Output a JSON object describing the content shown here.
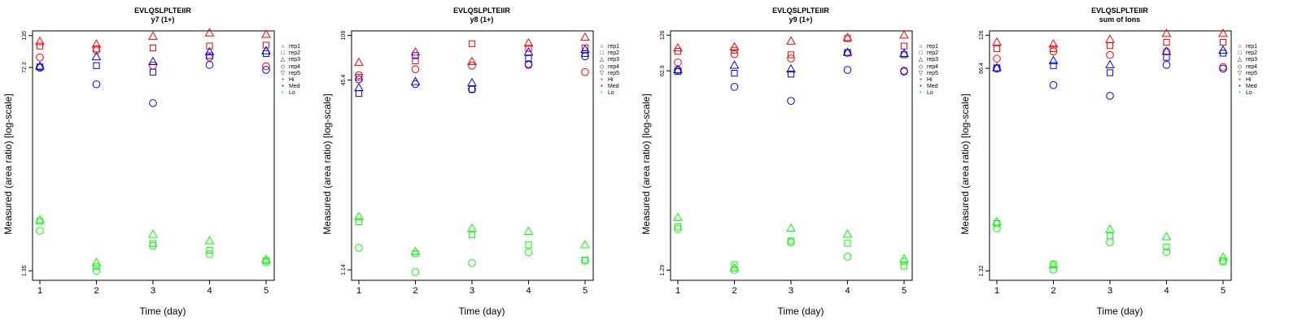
{
  "axis_labels": {
    "ylabel": "Measured (area ratio) [log-scale]",
    "xlabel": "Time (day)"
  },
  "legend": [
    {
      "label": "rep1",
      "shape": "circle",
      "color": "#000000"
    },
    {
      "label": "rep2",
      "shape": "square",
      "color": "#000000"
    },
    {
      "label": "rep3",
      "shape": "triangle-up",
      "color": "#000000"
    },
    {
      "label": "rep4",
      "shape": "diamond",
      "color": "#000000"
    },
    {
      "label": "rep5",
      "shape": "triangle-down",
      "color": "#000000"
    },
    {
      "label": "Hi",
      "shape": "dot",
      "color": "#ff0000"
    },
    {
      "label": "Med",
      "shape": "dot",
      "color": "#0000ff"
    },
    {
      "label": "Lo",
      "shape": "dot",
      "color": "#00ff00"
    }
  ],
  "colors": {
    "Hi": "#ff0000",
    "Med": "#0000ff",
    "Lo": "#00ff00"
  },
  "chart_data": [
    {
      "type": "scatter",
      "title": "EVLQSLPLTEIIR",
      "subtitle": "y7 (1+)",
      "xlabel": "Time (day)",
      "ylabel": "Measured (area ratio) [log-scale]",
      "x_ticks": [
        "1",
        "2",
        "3",
        "4",
        "5"
      ],
      "y_scale": "log",
      "y_ticks": [
        1.35,
        72.3,
        135
      ],
      "y_tick_labels": [
        "1.35",
        "72.3",
        "135"
      ],
      "ylim": [
        1.12,
        148
      ],
      "series": [
        {
          "name": "Hi rep1",
          "group": "Hi",
          "shape": "circle",
          "x": [
            1,
            2,
            3,
            4,
            5
          ],
          "y": [
            88,
            101,
            75,
            88,
            74
          ]
        },
        {
          "name": "Hi rep2",
          "group": "Hi",
          "shape": "square",
          "x": [
            1,
            2,
            3,
            4,
            5
          ],
          "y": [
            110,
            104,
            106,
            110,
            112
          ]
        },
        {
          "name": "Hi rep3",
          "group": "Hi",
          "shape": "triangle-up",
          "x": [
            1,
            2,
            3,
            4,
            5
          ],
          "y": [
            120,
            114,
            133,
            142,
            138
          ]
        },
        {
          "name": "Med rep1",
          "group": "Med",
          "shape": "circle",
          "x": [
            1,
            2,
            3,
            4,
            5
          ],
          "y": [
            72,
            52,
            36,
            76,
            69
          ]
        },
        {
          "name": "Med rep2",
          "group": "Med",
          "shape": "square",
          "x": [
            1,
            2,
            3,
            4,
            5
          ],
          "y": [
            73,
            75,
            66,
            91,
            95
          ]
        },
        {
          "name": "Med rep3",
          "group": "Med",
          "shape": "triangle-up",
          "x": [
            1,
            2,
            3,
            4,
            5
          ],
          "y": [
            74,
            89,
            81,
            98,
            100
          ]
        },
        {
          "name": "Lo rep1",
          "group": "Lo",
          "shape": "circle",
          "x": [
            1,
            2,
            3,
            4,
            5
          ],
          "y": [
            2.95,
            1.35,
            2.2,
            1.87,
            1.6
          ]
        },
        {
          "name": "Lo rep2",
          "group": "Lo",
          "shape": "square",
          "x": [
            1,
            2,
            3,
            4,
            5
          ],
          "y": [
            3.55,
            1.47,
            2.3,
            2.02,
            1.65
          ]
        },
        {
          "name": "Lo rep3",
          "group": "Lo",
          "shape": "triangle-up",
          "x": [
            1,
            2,
            3,
            4,
            5
          ],
          "y": [
            3.65,
            1.58,
            2.75,
            2.42,
            1.68
          ]
        }
      ]
    },
    {
      "type": "scatter",
      "title": "EVLQSLPLTEIIR",
      "subtitle": "y8 (1+)",
      "xlabel": "Time (day)",
      "ylabel": "Measured (area ratio) [log-scale]",
      "x_ticks": [
        "1",
        "2",
        "3",
        "4",
        "5"
      ],
      "y_scale": "log",
      "y_ticks": [
        1.14,
        45.4,
        108
      ],
      "y_tick_labels": [
        "1.14",
        "45.4",
        "108"
      ],
      "ylim": [
        0.93,
        118
      ],
      "series": [
        {
          "name": "Hi rep1",
          "group": "Hi",
          "shape": "circle",
          "x": [
            1,
            2,
            3,
            4,
            5
          ],
          "y": [
            50,
            56,
            60,
            62,
            53
          ]
        },
        {
          "name": "Hi rep2",
          "group": "Hi",
          "shape": "square",
          "x": [
            1,
            2,
            3,
            4,
            5
          ],
          "y": [
            48,
            66,
            92,
            84,
            85
          ]
        },
        {
          "name": "Hi rep3",
          "group": "Hi",
          "shape": "triangle-up",
          "x": [
            1,
            2,
            3,
            4,
            5
          ],
          "y": [
            64,
            78,
            65,
            93,
            104
          ]
        },
        {
          "name": "Med rep1",
          "group": "Med",
          "shape": "circle",
          "x": [
            1,
            2,
            3,
            4,
            5
          ],
          "y": [
            46,
            42,
            38,
            61,
            72
          ]
        },
        {
          "name": "Med rep2",
          "group": "Med",
          "shape": "square",
          "x": [
            1,
            2,
            3,
            4,
            5
          ],
          "y": [
            35,
            73,
            38,
            69,
            76
          ]
        },
        {
          "name": "Med rep3",
          "group": "Med",
          "shape": "triangle-up",
          "x": [
            1,
            2,
            3,
            4,
            5
          ],
          "y": [
            39,
            44,
            43,
            78,
            82
          ]
        },
        {
          "name": "Lo rep1",
          "group": "Lo",
          "shape": "circle",
          "x": [
            1,
            2,
            3,
            4,
            5
          ],
          "y": [
            1.75,
            1.09,
            1.3,
            1.6,
            1.36
          ]
        },
        {
          "name": "Lo rep2",
          "group": "Lo",
          "shape": "square",
          "x": [
            1,
            2,
            3,
            4,
            5
          ],
          "y": [
            2.9,
            1.56,
            2.25,
            1.85,
            1.38
          ]
        },
        {
          "name": "Lo rep3",
          "group": "Lo",
          "shape": "triangle-up",
          "x": [
            1,
            2,
            3,
            4,
            5
          ],
          "y": [
            3.2,
            1.62,
            2.55,
            2.4,
            1.85
          ]
        }
      ]
    },
    {
      "type": "scatter",
      "title": "EVLQSLPLTEIIR",
      "subtitle": "y9 (1+)",
      "xlabel": "Time (day)",
      "ylabel": "Measured (area ratio) [log-scale]",
      "x_ticks": [
        "1",
        "2",
        "3",
        "4",
        "5"
      ],
      "y_scale": "log",
      "y_ticks": [
        1.29,
        62.9,
        126
      ],
      "y_tick_labels": [
        "1.29",
        "62.9",
        "126"
      ],
      "ylim": [
        1.06,
        137
      ],
      "series": [
        {
          "name": "Hi rep1",
          "group": "Hi",
          "shape": "circle",
          "x": [
            1,
            2,
            3,
            4,
            5
          ],
          "y": [
            74,
            87,
            80,
            89,
            63
          ]
        },
        {
          "name": "Hi rep2",
          "group": "Hi",
          "shape": "square",
          "x": [
            1,
            2,
            3,
            4,
            5
          ],
          "y": [
            92,
            94,
            86,
            118,
            102
          ]
        },
        {
          "name": "Hi rep3",
          "group": "Hi",
          "shape": "triangle-up",
          "x": [
            1,
            2,
            3,
            4,
            5
          ],
          "y": [
            98,
            100,
            112,
            120,
            126
          ]
        },
        {
          "name": "Med rep1",
          "group": "Med",
          "shape": "circle",
          "x": [
            1,
            2,
            3,
            4,
            5
          ],
          "y": [
            64,
            46,
            35,
            64,
            62
          ]
        },
        {
          "name": "Med rep2",
          "group": "Med",
          "shape": "square",
          "x": [
            1,
            2,
            3,
            4,
            5
          ],
          "y": [
            62,
            60,
            59,
            90,
            86
          ]
        },
        {
          "name": "Med rep3",
          "group": "Med",
          "shape": "triangle-up",
          "x": [
            1,
            2,
            3,
            4,
            5
          ],
          "y": [
            64,
            70,
            65,
            90,
            88
          ]
        },
        {
          "name": "Lo rep1",
          "group": "Lo",
          "shape": "circle",
          "x": [
            1,
            2,
            3,
            4,
            5
          ],
          "y": [
            2.88,
            1.3,
            2.23,
            1.68,
            1.53
          ]
        },
        {
          "name": "Lo rep2",
          "group": "Lo",
          "shape": "square",
          "x": [
            1,
            2,
            3,
            4,
            5
          ],
          "y": [
            3.0,
            1.44,
            2.28,
            2.18,
            1.4
          ]
        },
        {
          "name": "Lo rep3",
          "group": "Lo",
          "shape": "triangle-up",
          "x": [
            1,
            2,
            3,
            4,
            5
          ],
          "y": [
            3.6,
            1.35,
            2.92,
            2.6,
            1.6
          ]
        }
      ]
    },
    {
      "type": "scatter",
      "title": "EVLQSLPLTEIIR",
      "subtitle": "sum of Ions",
      "xlabel": "Time (day)",
      "ylabel": "Measured (area ratio) [log-scale]",
      "x_ticks": [
        "1",
        "2",
        "3",
        "4",
        "5"
      ],
      "y_scale": "log",
      "y_ticks": [
        1.32,
        66.4,
        126
      ],
      "y_tick_labels": [
        "1.32",
        "66.4",
        "126"
      ],
      "ylim": [
        1.1,
        137
      ],
      "series": [
        {
          "name": "Hi rep1",
          "group": "Hi",
          "shape": "circle",
          "x": [
            1,
            2,
            3,
            4,
            5
          ],
          "y": [
            80,
            92,
            86,
            92,
            68
          ]
        },
        {
          "name": "Hi rep2",
          "group": "Hi",
          "shape": "square",
          "x": [
            1,
            2,
            3,
            4,
            5
          ],
          "y": [
            97,
            97,
            103,
            110,
            110
          ]
        },
        {
          "name": "Hi rep3",
          "group": "Hi",
          "shape": "triangle-up",
          "x": [
            1,
            2,
            3,
            4,
            5
          ],
          "y": [
            110,
            106,
            116,
            130,
            130
          ]
        },
        {
          "name": "Med rep1",
          "group": "Med",
          "shape": "circle",
          "x": [
            1,
            2,
            3,
            4,
            5
          ],
          "y": [
            66,
            48,
            39,
            71,
            66
          ]
        },
        {
          "name": "Med rep2",
          "group": "Med",
          "shape": "square",
          "x": [
            1,
            2,
            3,
            4,
            5
          ],
          "y": [
            67,
            70,
            61,
            82,
            89
          ]
        },
        {
          "name": "Med rep3",
          "group": "Med",
          "shape": "triangle-up",
          "x": [
            1,
            2,
            3,
            4,
            5
          ],
          "y": [
            67,
            77,
            71,
            92,
            94
          ]
        },
        {
          "name": "Lo rep1",
          "group": "Lo",
          "shape": "circle",
          "x": [
            1,
            2,
            3,
            4,
            5
          ],
          "y": [
            3.0,
            1.35,
            2.3,
            1.9,
            1.58
          ]
        },
        {
          "name": "Lo rep2",
          "group": "Lo",
          "shape": "square",
          "x": [
            1,
            2,
            3,
            4,
            5
          ],
          "y": [
            3.3,
            1.5,
            2.6,
            2.1,
            1.6
          ]
        },
        {
          "name": "Lo rep3",
          "group": "Lo",
          "shape": "triangle-up",
          "x": [
            1,
            2,
            3,
            4,
            5
          ],
          "y": [
            3.4,
            1.48,
            2.95,
            2.55,
            1.72
          ]
        }
      ]
    }
  ]
}
